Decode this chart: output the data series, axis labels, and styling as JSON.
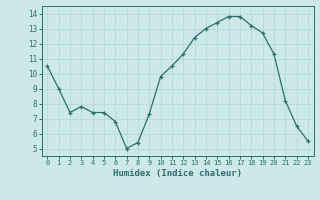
{
  "x": [
    0,
    1,
    2,
    3,
    4,
    5,
    6,
    7,
    8,
    9,
    10,
    11,
    12,
    13,
    14,
    15,
    16,
    17,
    18,
    19,
    20,
    21,
    22,
    23
  ],
  "y": [
    10.5,
    9.0,
    7.4,
    7.8,
    7.4,
    7.4,
    6.8,
    5.0,
    5.4,
    7.3,
    9.8,
    10.5,
    11.3,
    12.4,
    13.0,
    13.4,
    13.8,
    13.8,
    13.2,
    12.7,
    11.3,
    8.2,
    6.5,
    5.5
  ],
  "xlabel": "Humidex (Indice chaleur)",
  "xlim": [
    -0.5,
    23.5
  ],
  "ylim": [
    4.5,
    14.5
  ],
  "line_color": "#2e6e6e",
  "marker_color": "#2e6e6e",
  "bg_color": "#cce8e8",
  "grid_color": "#b8d8d8",
  "tick_label_color": "#2e6e6e",
  "axis_color": "#2e6e6e",
  "yticks": [
    5,
    6,
    7,
    8,
    9,
    10,
    11,
    12,
    13,
    14
  ],
  "xticks": [
    0,
    1,
    2,
    3,
    4,
    5,
    6,
    7,
    8,
    9,
    10,
    11,
    12,
    13,
    14,
    15,
    16,
    17,
    18,
    19,
    20,
    21,
    22,
    23
  ]
}
